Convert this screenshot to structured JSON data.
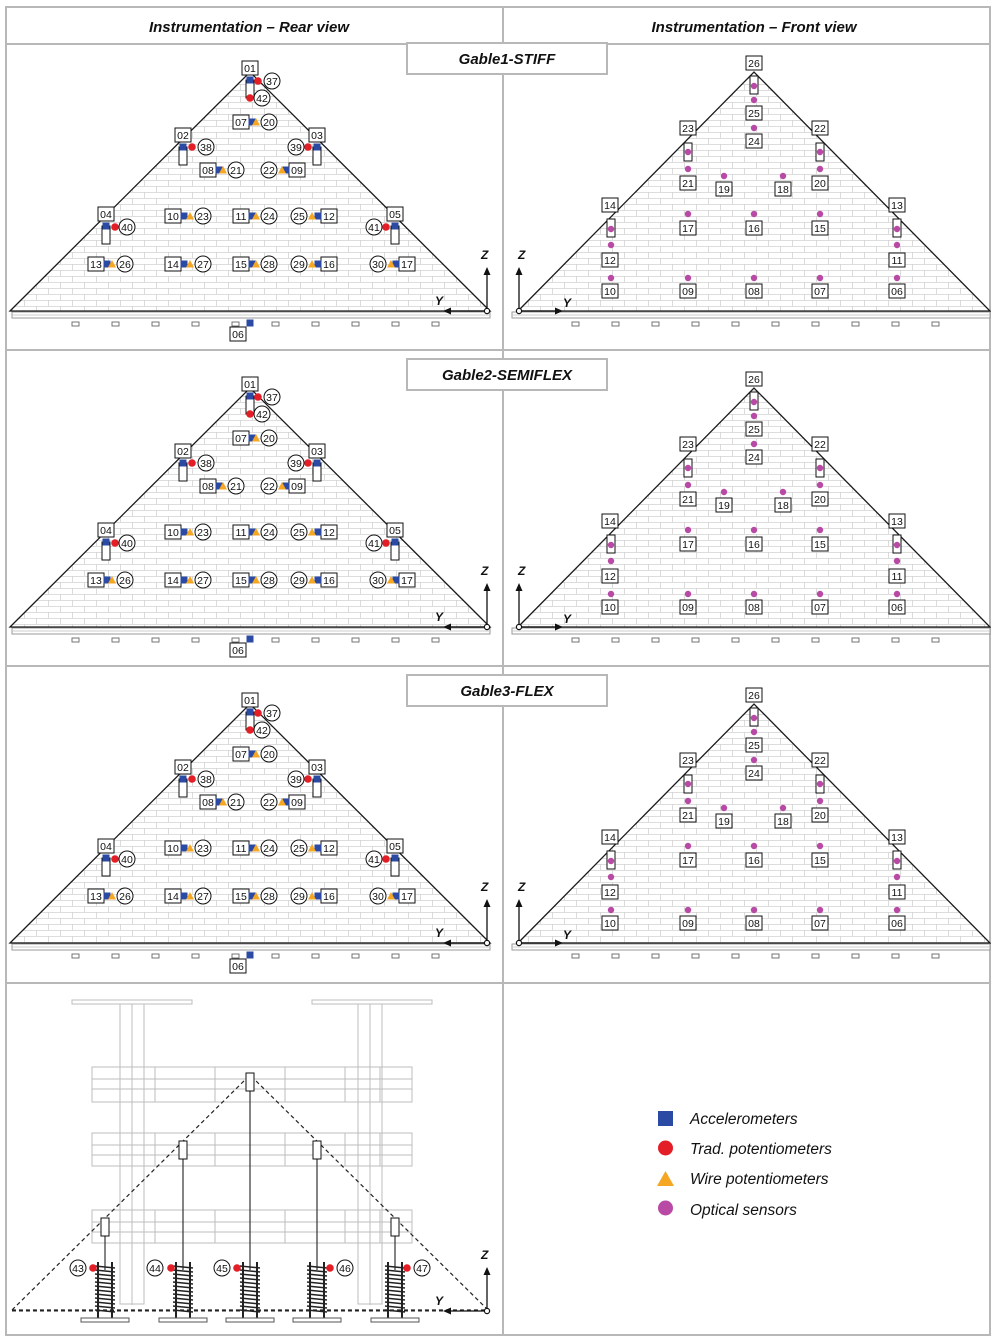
{
  "headers": {
    "rear": "Instrumentation – Rear view",
    "front": "Instrumentation – Front view"
  },
  "gables": [
    {
      "label": "Gable1-STIFF"
    },
    {
      "label": "Gable2-SEMIFLEX"
    },
    {
      "label": "Gable3-FLEX"
    }
  ],
  "rear_view": {
    "accelerometer_labels": [
      "01",
      "02",
      "03",
      "04",
      "05",
      "06"
    ],
    "pairs": [
      {
        "box": "07",
        "circle": "20"
      },
      {
        "box": "08",
        "circle": "21"
      },
      {
        "box": "09",
        "circle": "22"
      },
      {
        "box": "10",
        "circle": "23"
      },
      {
        "box": "11",
        "circle": "24"
      },
      {
        "box": "12",
        "circle": "25"
      },
      {
        "box": "13",
        "circle": "26"
      },
      {
        "box": "14",
        "circle": "27"
      },
      {
        "box": "15",
        "circle": "28"
      },
      {
        "box": "16",
        "circle": "29"
      },
      {
        "box": "17",
        "circle": "30"
      }
    ],
    "potentiometers": [
      "37",
      "38",
      "39",
      "40",
      "41",
      "42"
    ]
  },
  "front_view": {
    "optical_labels": [
      "06",
      "07",
      "08",
      "09",
      "10",
      "11",
      "12",
      "13",
      "14",
      "15",
      "16",
      "17",
      "18",
      "19",
      "20",
      "21",
      "22",
      "23",
      "24",
      "25",
      "26"
    ]
  },
  "bottom_view": {
    "potentiometers": [
      "43",
      "44",
      "45",
      "46",
      "47"
    ]
  },
  "axes": {
    "z": "Z",
    "y": "Y"
  },
  "legend": {
    "items": [
      {
        "label": "Accelerometers",
        "symbol": "square",
        "color": "#2b4aa3"
      },
      {
        "label": "Trad. potentiometers",
        "symbol": "circle",
        "color": "#e41e26"
      },
      {
        "label": "Wire potentiometers",
        "symbol": "triangle",
        "color": "#f5a623"
      },
      {
        "label": "Optical sensors",
        "symbol": "circle",
        "color": "#b84aa6"
      }
    ]
  },
  "colors": {
    "accelerometer": "#2b4aa3",
    "trad_pot": "#e41e26",
    "wire_pot": "#f5a623",
    "optical": "#b84aa6",
    "brick": "#cfcfcf",
    "frame": "#bdbdbd"
  }
}
